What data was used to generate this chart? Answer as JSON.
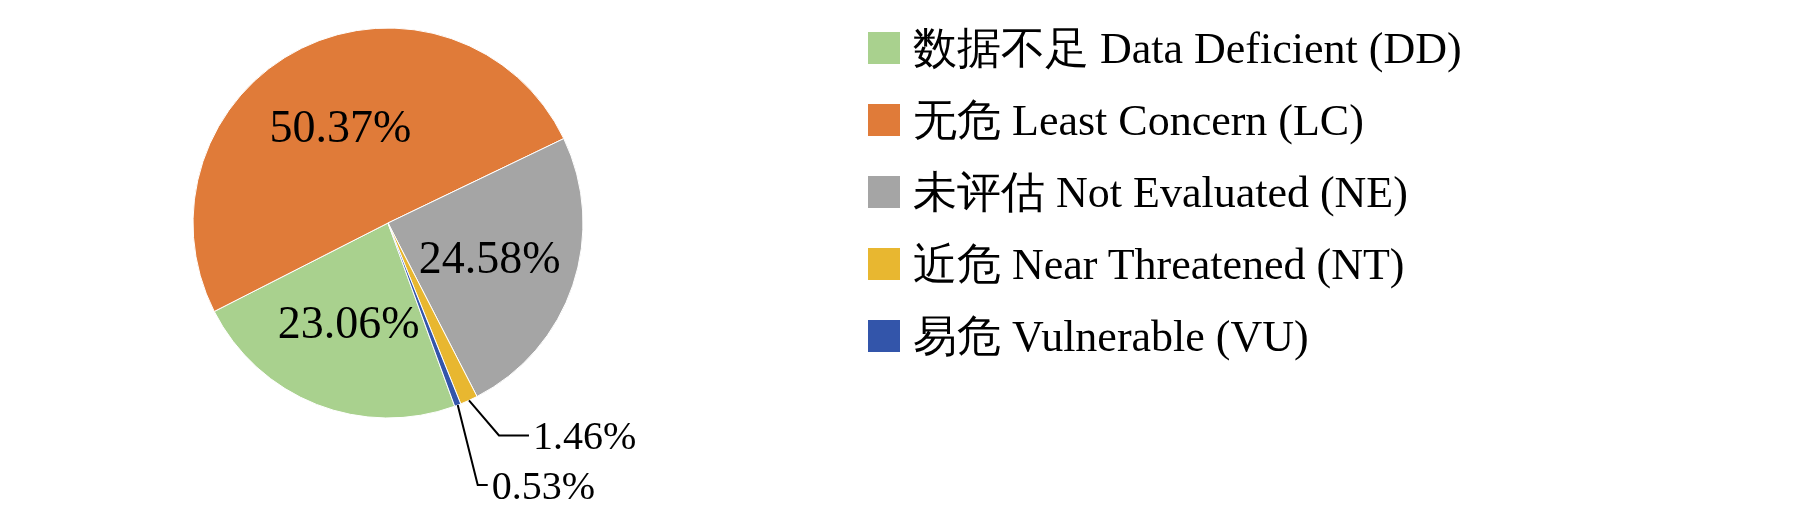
{
  "chart_data": {
    "type": "pie",
    "categories": [
      "数据不足 Data Deficient (DD)",
      "无危 Least Concern (LC)",
      "未评估 Not Evaluated (NE)",
      "近危 Near Threatened (NT)",
      "易危 Vulnerable (VU)"
    ],
    "values": [
      23.06,
      50.37,
      24.58,
      1.46,
      0.53
    ],
    "colors": [
      "#a9d18e",
      "#e07b39",
      "#a5a5a5",
      "#e8b730",
      "#3355aa"
    ],
    "value_labels": [
      "23.06%",
      "50.37%",
      "24.58%",
      "1.46%",
      "0.53%"
    ],
    "legend": "right"
  }
}
